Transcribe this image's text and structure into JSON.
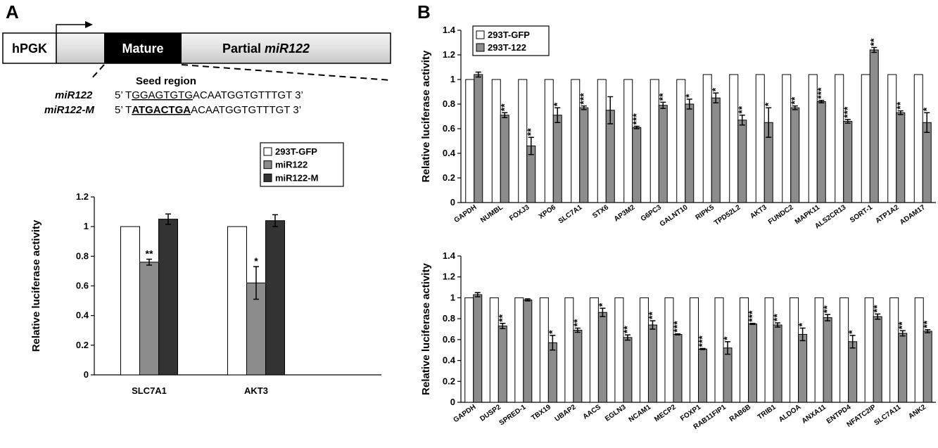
{
  "panel_a": {
    "label": "A",
    "construct": {
      "promoter": "hPGK",
      "mature": "Mature",
      "partial_prefix": "Partial ",
      "partial_name": "miR122"
    },
    "seed_region_label": "Seed region",
    "seq1": {
      "name": "miR122",
      "prefix": "5’ T",
      "seed": "GGAGTGTG",
      "rest": "ACAATGGTGTTTGT 3’"
    },
    "seq2": {
      "name": "miR122-M",
      "prefix": "5’ T",
      "seed": "ATGACTGA",
      "rest": "ACAATGGTGTTTGT 3’"
    }
  },
  "panel_b": {
    "label": "B"
  },
  "colors": {
    "white_bar": "#ffffff",
    "gray_bar": "#8c8c8c",
    "dark_bar": "#333333"
  },
  "chart_data": [
    {
      "id": "A",
      "type": "bar",
      "ylabel": "Relative luciferase activity",
      "ylim": [
        0,
        1.2
      ],
      "yticks": [
        "0",
        "0.2",
        "0.4",
        "0.6",
        "0.8",
        "1",
        "1.2"
      ],
      "legend_position": "top-right",
      "categories": [
        "SLC7A1",
        "AKT3"
      ],
      "series": [
        {
          "name": "293T-GFP",
          "color": "#ffffff",
          "values": [
            1,
            1
          ],
          "errors": [
            0,
            0
          ],
          "stars": [
            "",
            ""
          ]
        },
        {
          "name": "miR122",
          "color": "#8c8c8c",
          "values": [
            0.76,
            0.62
          ],
          "errors": [
            0.02,
            0.11
          ],
          "stars": [
            "**",
            "*"
          ]
        },
        {
          "name": "miR122-M",
          "color": "#333333",
          "values": [
            1.05,
            1.04
          ],
          "errors": [
            0.035,
            0.04
          ],
          "stars": [
            "",
            ""
          ]
        }
      ]
    },
    {
      "id": "B1",
      "type": "bar",
      "ylabel": "Relative luciferase activity",
      "ylim": [
        0,
        1.4
      ],
      "yticks": [
        "0",
        "0.2",
        "0.4",
        "0.6",
        "0.8",
        "1",
        "1.2",
        "1.4"
      ],
      "legend_position": "top-left",
      "categories": [
        "GAPDH",
        "NUMBL",
        "FOXJ3",
        "XPO6",
        "SLC7A1",
        "STX6",
        "AP3M2",
        "G6PC3",
        "GALNT10",
        "RIPK5",
        "TPD52L2",
        "AKT3",
        "FUNDC2",
        "MAPK11",
        "ALS2CR13",
        "SORT-1",
        "ATP1A2",
        "ADAM17"
      ],
      "series": [
        {
          "name": "293T-GFP",
          "color": "#ffffff",
          "values": [
            1,
            1,
            1,
            1,
            1,
            1,
            1,
            1,
            1,
            1.04,
            1.04,
            1.04,
            1.04,
            1.04,
            1.04,
            1.04,
            1.04,
            1.04
          ],
          "errors": [
            0,
            0,
            0,
            0,
            0,
            0,
            0,
            0,
            0,
            0,
            0,
            0,
            0,
            0,
            0,
            0,
            0,
            0
          ],
          "stars": [
            "",
            "",
            "",
            "",
            "",
            "",
            "",
            "",
            "",
            "",
            "",
            "",
            "",
            "",
            "",
            "",
            "",
            ""
          ]
        },
        {
          "name": "293T-122",
          "color": "#8c8c8c",
          "values": [
            1.04,
            0.71,
            0.46,
            0.71,
            0.77,
            0.75,
            0.61,
            0.79,
            0.8,
            0.85,
            0.67,
            0.65,
            0.77,
            0.82,
            0.66,
            1.24,
            0.73,
            0.65
          ],
          "errors": [
            0.02,
            0.02,
            0.07,
            0.06,
            0.015,
            0.11,
            0.01,
            0.025,
            0.04,
            0.04,
            0.04,
            0.12,
            0.015,
            0.01,
            0.015,
            0.02,
            0.015,
            0.08
          ],
          "stars": [
            "",
            "**",
            "**",
            "*",
            "***",
            "",
            "***",
            "**",
            "*",
            "*",
            "**",
            "*",
            "**",
            "***",
            "***",
            "**",
            "**",
            "*"
          ]
        }
      ]
    },
    {
      "id": "B2",
      "type": "bar",
      "ylabel": "Relative luciferase activity",
      "ylim": [
        0,
        1.4
      ],
      "yticks": [
        "0",
        "0.2",
        "0.4",
        "0.6",
        "0.8",
        "1",
        "1.2",
        "1.4"
      ],
      "legend_position": "none",
      "categories": [
        "GAPDH",
        "DUSP2",
        "SPRED-1",
        "TBX19",
        "UBAP2",
        "AACS",
        "EGLN3",
        "NCAM1",
        "MECP2",
        "FOXP1",
        "RAB11FIP1",
        "RAB6B",
        "TRIB1",
        "ALDOA",
        "ANXA11",
        "ENTPD4",
        "NFATC2IP",
        "SLC7A11",
        "ANK2"
      ],
      "series": [
        {
          "name": "293T-GFP",
          "color": "#ffffff",
          "values": [
            1,
            1,
            1,
            1,
            1,
            1,
            1,
            1,
            1,
            1,
            1,
            1,
            1,
            1,
            1,
            1,
            1,
            1,
            1
          ],
          "errors": [
            0,
            0,
            0,
            0,
            0,
            0,
            0,
            0,
            0,
            0,
            0,
            0,
            0,
            0,
            0,
            0,
            0,
            0,
            0
          ],
          "stars": [
            "",
            "",
            "",
            "",
            "",
            "",
            "",
            "",
            "",
            "",
            "",
            "",
            "",
            "",
            "",
            "",
            "",
            "",
            ""
          ]
        },
        {
          "name": "293T-122",
          "color": "#8c8c8c",
          "values": [
            1.03,
            0.73,
            0.98,
            0.57,
            0.69,
            0.86,
            0.62,
            0.74,
            0.65,
            0.51,
            0.52,
            0.75,
            0.74,
            0.65,
            0.81,
            0.58,
            0.82,
            0.66,
            0.68
          ],
          "errors": [
            0.02,
            0.025,
            0.01,
            0.07,
            0.02,
            0.04,
            0.025,
            0.04,
            0.005,
            0.005,
            0.06,
            0.005,
            0.02,
            0.06,
            0.03,
            0.06,
            0.025,
            0.025,
            0.015
          ],
          "stars": [
            "",
            "**",
            "",
            "*",
            "**",
            "*",
            "**",
            "**",
            "***",
            "***",
            "*",
            "***",
            "**",
            "*",
            "**",
            "*",
            "**",
            "**",
            "**"
          ]
        }
      ]
    }
  ]
}
